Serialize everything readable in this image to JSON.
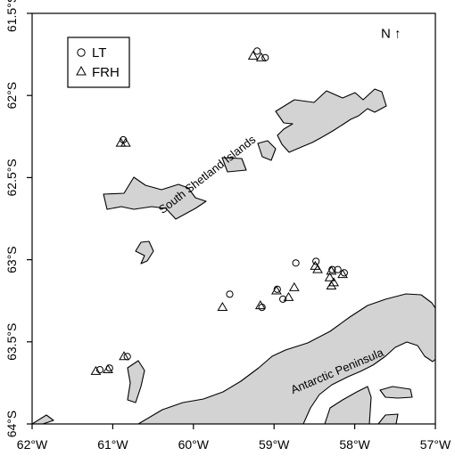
{
  "chart_data": {
    "type": "scatter",
    "title": "",
    "xlabel": "",
    "ylabel": "",
    "xlim": [
      -62.0,
      -57.0
    ],
    "ylim": [
      -64.0,
      -61.5
    ],
    "x_ticks": [
      {
        "value": -62.0,
        "label": "62°W"
      },
      {
        "value": -61.0,
        "label": "61°W"
      },
      {
        "value": -60.0,
        "label": "60°W"
      },
      {
        "value": -59.0,
        "label": "59°W"
      },
      {
        "value": -58.0,
        "label": "58°W"
      },
      {
        "value": -57.0,
        "label": "57°W"
      }
    ],
    "y_ticks": [
      {
        "value": -61.5,
        "label": "61.5°S"
      },
      {
        "value": -62.0,
        "label": "62°S"
      },
      {
        "value": -62.5,
        "label": "62.5°S"
      },
      {
        "value": -63.0,
        "label": "63°S"
      },
      {
        "value": -63.5,
        "label": "63.5°S"
      },
      {
        "value": -64.0,
        "label": "64°S"
      }
    ],
    "legend": {
      "placement": "top-left",
      "entries": [
        {
          "label": "LT",
          "marker": "circle"
        },
        {
          "label": "FRH",
          "marker": "triangle"
        }
      ]
    },
    "series": [
      {
        "name": "LT",
        "marker": "circle",
        "points": [
          {
            "x": -59.21,
            "y": -61.73
          },
          {
            "x": -59.11,
            "y": -61.77
          },
          {
            "x": -60.87,
            "y": -62.27
          },
          {
            "x": -58.73,
            "y": -63.02
          },
          {
            "x": -58.48,
            "y": -63.01
          },
          {
            "x": -58.21,
            "y": -63.06
          },
          {
            "x": -58.28,
            "y": -63.06
          },
          {
            "x": -58.13,
            "y": -63.08
          },
          {
            "x": -59.55,
            "y": -63.21
          },
          {
            "x": -58.96,
            "y": -63.18
          },
          {
            "x": -58.89,
            "y": -63.24
          },
          {
            "x": -59.15,
            "y": -63.29
          },
          {
            "x": -60.82,
            "y": -63.59
          },
          {
            "x": -61.16,
            "y": -63.67
          },
          {
            "x": -61.04,
            "y": -63.66
          }
        ]
      },
      {
        "name": "FRH",
        "marker": "triangle",
        "points": [
          {
            "x": -59.26,
            "y": -61.76
          },
          {
            "x": -59.16,
            "y": -61.77
          },
          {
            "x": -60.9,
            "y": -62.29
          },
          {
            "x": -60.84,
            "y": -62.29
          },
          {
            "x": -58.49,
            "y": -63.04
          },
          {
            "x": -58.46,
            "y": -63.06
          },
          {
            "x": -58.29,
            "y": -63.07
          },
          {
            "x": -58.15,
            "y": -63.09
          },
          {
            "x": -58.31,
            "y": -63.11
          },
          {
            "x": -58.26,
            "y": -63.14
          },
          {
            "x": -58.29,
            "y": -63.16
          },
          {
            "x": -58.75,
            "y": -63.17
          },
          {
            "x": -58.97,
            "y": -63.19
          },
          {
            "x": -58.82,
            "y": -63.23
          },
          {
            "x": -59.64,
            "y": -63.29
          },
          {
            "x": -59.17,
            "y": -63.28
          },
          {
            "x": -60.86,
            "y": -63.59
          },
          {
            "x": -61.21,
            "y": -63.68
          },
          {
            "x": -61.06,
            "y": -63.67
          }
        ]
      }
    ],
    "annotations": [
      {
        "text": "South Shetland Islands",
        "x": -59.8,
        "y": -62.5,
        "rotation": -38
      },
      {
        "text": "Antarctic Peninsula",
        "x": -58.2,
        "y": -63.7,
        "rotation": -23
      },
      {
        "text": "N ↑",
        "x": -57.55,
        "y": -61.65
      }
    ],
    "grid": false
  },
  "colors": {
    "land": "#d3d3d3",
    "outline": "#000000",
    "background": "#ffffff"
  }
}
